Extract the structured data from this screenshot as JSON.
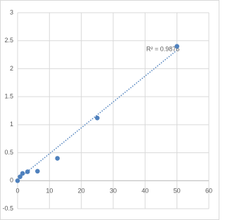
{
  "chart_data": {
    "type": "scatter",
    "series": [
      {
        "color": "#4f81bd",
        "x": [
          0,
          0.78,
          1.56,
          3.125,
          6.25,
          12.5,
          25,
          50
        ],
        "values": [
          0.0,
          0.07,
          0.13,
          0.16,
          0.17,
          0.4,
          1.12,
          2.4
        ]
      }
    ],
    "trendline": {
      "x": [
        0,
        50
      ],
      "values": [
        0.02,
        2.33
      ],
      "color": "#4f81bd",
      "annotation": "R² = 0.9876"
    },
    "xlim": [
      0,
      60
    ],
    "xticks": [
      0,
      10,
      20,
      30,
      40,
      50,
      60
    ],
    "ylim": [
      -0.5,
      3
    ],
    "yticks": [
      -0.5,
      0,
      0.5,
      1,
      1.5,
      2,
      2.5,
      3
    ],
    "grid": true
  }
}
